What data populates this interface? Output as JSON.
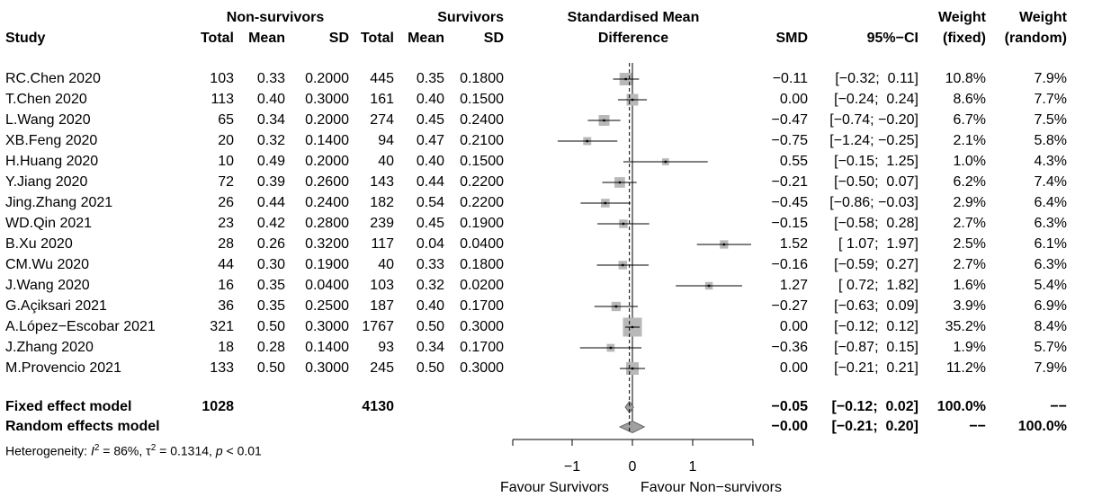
{
  "headers": {
    "group1": "Non-survivors",
    "group2": "Survivors",
    "smd_title_1": "Standardised Mean",
    "smd_title_2": "Difference",
    "weight_1": "Weight",
    "weight_2": "Weight",
    "study": "Study",
    "total1": "Total",
    "mean1": "Mean",
    "sd1": "SD",
    "total2": "Total",
    "mean2": "Mean",
    "sd2": "SD",
    "smd": "SMD",
    "ci": "95%−CI",
    "wfixed": "(fixed)",
    "wrandom": "(random)"
  },
  "studies": [
    {
      "name": "RC.Chen 2020",
      "n1": "103",
      "m1": "0.33",
      "sd1": "0.2000",
      "n2": "445",
      "m2": "0.35",
      "sd2": "0.1800",
      "smd_text": "−0.11",
      "ci_text": "[−0.32;  0.11]",
      "wf": "10.8%",
      "wr": "7.9%"
    },
    {
      "name": "T.Chen 2020",
      "n1": "113",
      "m1": "0.40",
      "sd1": "0.3000",
      "n2": "161",
      "m2": "0.40",
      "sd2": "0.1500",
      "smd_text": "0.00",
      "ci_text": "[−0.24;  0.24]",
      "wf": "8.6%",
      "wr": "7.7%"
    },
    {
      "name": "L.Wang 2020",
      "n1": "65",
      "m1": "0.34",
      "sd1": "0.2000",
      "n2": "274",
      "m2": "0.45",
      "sd2": "0.2400",
      "smd_text": "−0.47",
      "ci_text": "[−0.74; −0.20]",
      "wf": "6.7%",
      "wr": "7.5%"
    },
    {
      "name": "XB.Feng 2020",
      "n1": "20",
      "m1": "0.32",
      "sd1": "0.1400",
      "n2": "94",
      "m2": "0.47",
      "sd2": "0.2100",
      "smd_text": "−0.75",
      "ci_text": "[−1.24; −0.25]",
      "wf": "2.1%",
      "wr": "5.8%"
    },
    {
      "name": "H.Huang 2020",
      "n1": "10",
      "m1": "0.49",
      "sd1": "0.2000",
      "n2": "40",
      "m2": "0.40",
      "sd2": "0.1500",
      "smd_text": "0.55",
      "ci_text": "[−0.15;  1.25]",
      "wf": "1.0%",
      "wr": "4.3%"
    },
    {
      "name": "Y.Jiang 2020",
      "n1": "72",
      "m1": "0.39",
      "sd1": "0.2600",
      "n2": "143",
      "m2": "0.44",
      "sd2": "0.2200",
      "smd_text": "−0.21",
      "ci_text": "[−0.50;  0.07]",
      "wf": "6.2%",
      "wr": "7.4%"
    },
    {
      "name": "Jing.Zhang 2021",
      "n1": "26",
      "m1": "0.44",
      "sd1": "0.2400",
      "n2": "182",
      "m2": "0.54",
      "sd2": "0.2200",
      "smd_text": "−0.45",
      "ci_text": "[−0.86; −0.03]",
      "wf": "2.9%",
      "wr": "6.4%"
    },
    {
      "name": "WD.Qin 2021",
      "n1": "23",
      "m1": "0.42",
      "sd1": "0.2800",
      "n2": "239",
      "m2": "0.45",
      "sd2": "0.1900",
      "smd_text": "−0.15",
      "ci_text": "[−0.58;  0.28]",
      "wf": "2.7%",
      "wr": "6.3%"
    },
    {
      "name": "B.Xu 2020",
      "n1": "28",
      "m1": "0.26",
      "sd1": "0.3200",
      "n2": "117",
      "m2": "0.04",
      "sd2": "0.0400",
      "smd_text": "1.52",
      "ci_text": "[ 1.07;  1.97]",
      "wf": "2.5%",
      "wr": "6.1%"
    },
    {
      "name": "CM.Wu 2020",
      "n1": "44",
      "m1": "0.30",
      "sd1": "0.1900",
      "n2": "40",
      "m2": "0.33",
      "sd2": "0.1800",
      "smd_text": "−0.16",
      "ci_text": "[−0.59;  0.27]",
      "wf": "2.7%",
      "wr": "6.3%"
    },
    {
      "name": "J.Wang 2020",
      "n1": "16",
      "m1": "0.35",
      "sd1": "0.0400",
      "n2": "103",
      "m2": "0.32",
      "sd2": "0.0200",
      "smd_text": "1.27",
      "ci_text": "[ 0.72;  1.82]",
      "wf": "1.6%",
      "wr": "5.4%"
    },
    {
      "name": "G.Açiksari 2021",
      "n1": "36",
      "m1": "0.35",
      "sd1": "0.2500",
      "n2": "187",
      "m2": "0.40",
      "sd2": "0.1700",
      "smd_text": "−0.27",
      "ci_text": "[−0.63;  0.09]",
      "wf": "3.9%",
      "wr": "6.9%"
    },
    {
      "name": "A.López−Escobar 2021",
      "n1": "321",
      "m1": "0.50",
      "sd1": "0.3000",
      "n2": "1767",
      "m2": "0.50",
      "sd2": "0.3000",
      "smd_text": "0.00",
      "ci_text": "[−0.12;  0.12]",
      "wf": "35.2%",
      "wr": "8.4%"
    },
    {
      "name": "J.Zhang 2020",
      "n1": "18",
      "m1": "0.28",
      "sd1": "0.1400",
      "n2": "93",
      "m2": "0.34",
      "sd2": "0.1700",
      "smd_text": "−0.36",
      "ci_text": "[−0.87;  0.15]",
      "wf": "1.9%",
      "wr": "5.7%"
    },
    {
      "name": "M.Provencio 2021",
      "n1": "133",
      "m1": "0.50",
      "sd1": "0.3000",
      "n2": "245",
      "m2": "0.50",
      "sd2": "0.3000",
      "smd_text": "0.00",
      "ci_text": "[−0.21;  0.21]",
      "wf": "11.2%",
      "wr": "7.9%"
    }
  ],
  "summary": {
    "fixed": {
      "name": "Fixed effect model",
      "n1": "1028",
      "n2": "4130",
      "smd_text": "−0.05",
      "ci_text": "[−0.12;  0.02]",
      "wf": "100.0%",
      "wr": "−−"
    },
    "random": {
      "name": "Random effects model",
      "smd_text": "−0.00",
      "ci_text": "[−0.21;  0.20]",
      "wf": "−−",
      "wr": "100.0%"
    },
    "heterogeneity_label": "Heterogeneity: ",
    "i2_symbol": "I",
    "i2_exp": "2",
    "i2_value": " = 86%, ",
    "tau_symbol": "τ",
    "tau_exp": "2",
    "tau_value": " = 0.1314, ",
    "p_symbol": "p",
    "p_value": " < 0.01"
  },
  "axis": {
    "ticks": [
      -1,
      0,
      1
    ],
    "tick_labels": [
      "−1",
      "0",
      "1"
    ],
    "favour_left": "Favour Survivors",
    "favour_right": "Favour Non−survivors"
  },
  "colors": {
    "square": "#b8b8b8",
    "diamond": "#a0a0a0",
    "line": "#000000"
  },
  "chart_data": {
    "type": "forest",
    "xlabel": "",
    "xlim": [
      -1.24,
      1.97
    ],
    "series": [
      {
        "study": "RC.Chen 2020",
        "smd": -0.11,
        "lower": -0.32,
        "upper": 0.11,
        "weight_fixed": 10.8,
        "weight_random": 7.9
      },
      {
        "study": "T.Chen 2020",
        "smd": 0.0,
        "lower": -0.24,
        "upper": 0.24,
        "weight_fixed": 8.6,
        "weight_random": 7.7
      },
      {
        "study": "L.Wang 2020",
        "smd": -0.47,
        "lower": -0.74,
        "upper": -0.2,
        "weight_fixed": 6.7,
        "weight_random": 7.5
      },
      {
        "study": "XB.Feng 2020",
        "smd": -0.75,
        "lower": -1.24,
        "upper": -0.25,
        "weight_fixed": 2.1,
        "weight_random": 5.8
      },
      {
        "study": "H.Huang 2020",
        "smd": 0.55,
        "lower": -0.15,
        "upper": 1.25,
        "weight_fixed": 1.0,
        "weight_random": 4.3
      },
      {
        "study": "Y.Jiang 2020",
        "smd": -0.21,
        "lower": -0.5,
        "upper": 0.07,
        "weight_fixed": 6.2,
        "weight_random": 7.4
      },
      {
        "study": "Jing.Zhang 2021",
        "smd": -0.45,
        "lower": -0.86,
        "upper": -0.03,
        "weight_fixed": 2.9,
        "weight_random": 6.4
      },
      {
        "study": "WD.Qin 2021",
        "smd": -0.15,
        "lower": -0.58,
        "upper": 0.28,
        "weight_fixed": 2.7,
        "weight_random": 6.3
      },
      {
        "study": "B.Xu 2020",
        "smd": 1.52,
        "lower": 1.07,
        "upper": 1.97,
        "weight_fixed": 2.5,
        "weight_random": 6.1
      },
      {
        "study": "CM.Wu 2020",
        "smd": -0.16,
        "lower": -0.59,
        "upper": 0.27,
        "weight_fixed": 2.7,
        "weight_random": 6.3
      },
      {
        "study": "J.Wang 2020",
        "smd": 1.27,
        "lower": 0.72,
        "upper": 1.82,
        "weight_fixed": 1.6,
        "weight_random": 5.4
      },
      {
        "study": "G.Açiksari 2021",
        "smd": -0.27,
        "lower": -0.63,
        "upper": 0.09,
        "weight_fixed": 3.9,
        "weight_random": 6.9
      },
      {
        "study": "A.López−Escobar 2021",
        "smd": 0.0,
        "lower": -0.12,
        "upper": 0.12,
        "weight_fixed": 35.2,
        "weight_random": 8.4
      },
      {
        "study": "J.Zhang 2020",
        "smd": -0.36,
        "lower": -0.87,
        "upper": 0.15,
        "weight_fixed": 1.9,
        "weight_random": 5.7
      },
      {
        "study": "M.Provencio 2021",
        "smd": 0.0,
        "lower": -0.21,
        "upper": 0.21,
        "weight_fixed": 11.2,
        "weight_random": 7.9
      }
    ],
    "pooled": [
      {
        "model": "Fixed effect model",
        "smd": -0.05,
        "lower": -0.12,
        "upper": 0.02
      },
      {
        "model": "Random effects model",
        "smd": -0.0,
        "lower": -0.21,
        "upper": 0.2
      }
    ]
  }
}
